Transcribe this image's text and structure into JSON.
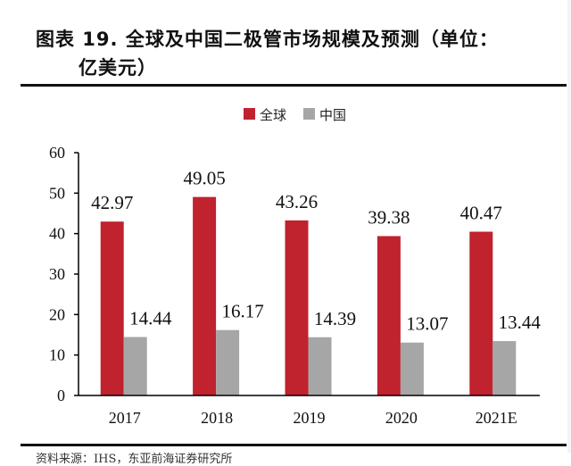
{
  "title": {
    "line1": "图表 19. 全球及中国二极管市场规模及预测（单位：",
    "line2": "亿美元）"
  },
  "source": "资料来源：IHS，东亚前海证券研究所",
  "colors": {
    "global": "#C0222E",
    "china": "#A6A6A6",
    "axis": "#000000"
  },
  "chart_data": {
    "type": "bar",
    "title": "全球及中国二极管市场规模及预测（单位：亿美元）",
    "xlabel": "",
    "ylabel": "",
    "categories": [
      "2017",
      "2018",
      "2019",
      "2020",
      "2021E"
    ],
    "series": [
      {
        "name": "全球",
        "values": [
          42.97,
          49.05,
          43.26,
          39.38,
          40.47
        ],
        "labels": [
          "42.97",
          "49.05",
          "43.26",
          "39.38",
          "40.47"
        ]
      },
      {
        "name": "中国",
        "values": [
          14.44,
          16.17,
          14.39,
          13.07,
          13.44
        ],
        "labels": [
          "14.44",
          "16.17",
          "14.39",
          "13.07",
          "13.44"
        ]
      }
    ],
    "ylim": [
      0,
      60
    ],
    "yticks": [
      "0",
      "10",
      "20",
      "30",
      "40",
      "50",
      "60"
    ],
    "grid": false,
    "legend": "top-center",
    "data_labels": true
  }
}
